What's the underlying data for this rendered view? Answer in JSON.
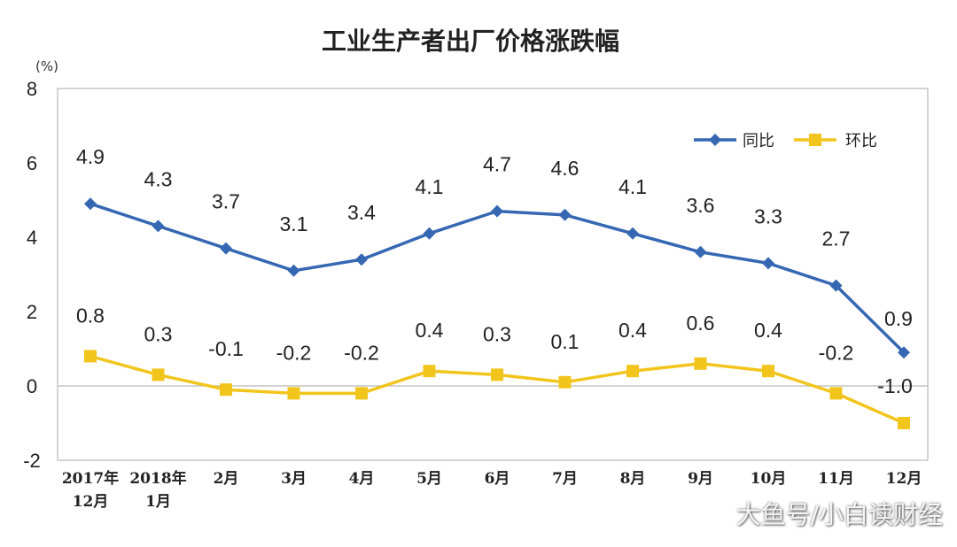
{
  "chart_data": {
    "type": "line",
    "title": "工业生产者出厂价格涨跌幅",
    "unit_label": "(%)",
    "categories": [
      [
        "2017年",
        "12月"
      ],
      [
        "2018年",
        "1月"
      ],
      [
        "2月"
      ],
      [
        "3月"
      ],
      [
        "4月"
      ],
      [
        "5月"
      ],
      [
        "6月"
      ],
      [
        "7月"
      ],
      [
        "8月"
      ],
      [
        "9月"
      ],
      [
        "10月"
      ],
      [
        "11月"
      ],
      [
        "12月"
      ]
    ],
    "ylim": [
      -2,
      8
    ],
    "yticks": [
      -2,
      0,
      2,
      4,
      6,
      8
    ],
    "grid": false,
    "legend_position": "top-right",
    "series": [
      {
        "name": "同比",
        "color": "#3567B3",
        "marker": "diamond",
        "values": [
          4.9,
          4.3,
          3.7,
          3.1,
          3.4,
          4.1,
          4.7,
          4.6,
          4.1,
          3.6,
          3.3,
          2.7,
          0.9
        ],
        "labels": [
          "4.9",
          "4.3",
          "3.7",
          "3.1",
          "3.4",
          "4.1",
          "4.7",
          "4.6",
          "4.1",
          "3.6",
          "3.3",
          "2.7",
          "0.9"
        ]
      },
      {
        "name": "环比",
        "color": "#F2C51D",
        "marker": "square",
        "values": [
          0.8,
          0.3,
          -0.1,
          -0.2,
          -0.2,
          0.4,
          0.3,
          0.1,
          0.4,
          0.6,
          0.4,
          -0.2,
          -1.0
        ],
        "labels": [
          "0.8",
          "0.3",
          "-0.1",
          "-0.2",
          "-0.2",
          "0.4",
          "0.3",
          "0.1",
          "0.4",
          "0.6",
          "0.4",
          "-0.2",
          "-1.0"
        ]
      }
    ]
  },
  "watermark": "大鱼号/小白读财经"
}
